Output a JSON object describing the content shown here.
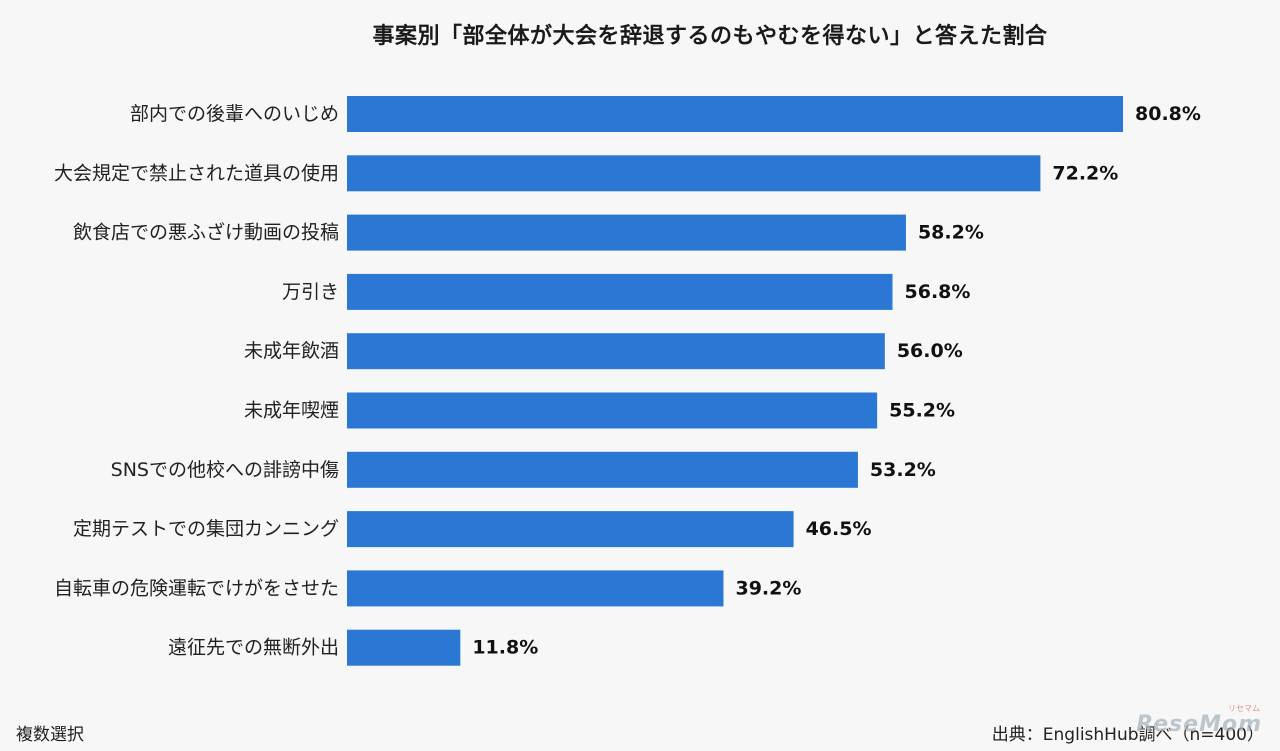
{
  "chart_data": {
    "type": "bar",
    "orientation": "horizontal",
    "title": "事案別「部全体が大会を辞退するのもやむを得ない」と答えた割合",
    "categories": [
      "部内での後輩へのいじめ",
      "大会規定で禁止された道具の使用",
      "飲食店での悪ふざけ動画の投稿",
      "万引き",
      "未成年飲酒",
      "未成年喫煙",
      "SNSでの他校への誹謗中傷",
      "定期テストでの集団カンニング",
      "自転車の危険運転でけがをさせた",
      "遠征先での無断外出"
    ],
    "values": [
      80.8,
      72.2,
      58.2,
      56.8,
      56.0,
      55.2,
      53.2,
      46.5,
      39.2,
      11.8
    ],
    "value_labels": [
      "80.8%",
      "72.2%",
      "58.2%",
      "56.8%",
      "56.0%",
      "55.2%",
      "53.2%",
      "46.5%",
      "39.2%",
      "11.8%"
    ],
    "unit": "%",
    "xlim": [
      0,
      100
    ],
    "grid": false,
    "legend": "none",
    "bar_color": "#2b78d4"
  },
  "footer": {
    "note": "複数選択",
    "source": "出典：EnglishHub調べ（n=400）"
  },
  "watermark": {
    "logo": "ReseMom",
    "logo_sub": "リセマム"
  }
}
